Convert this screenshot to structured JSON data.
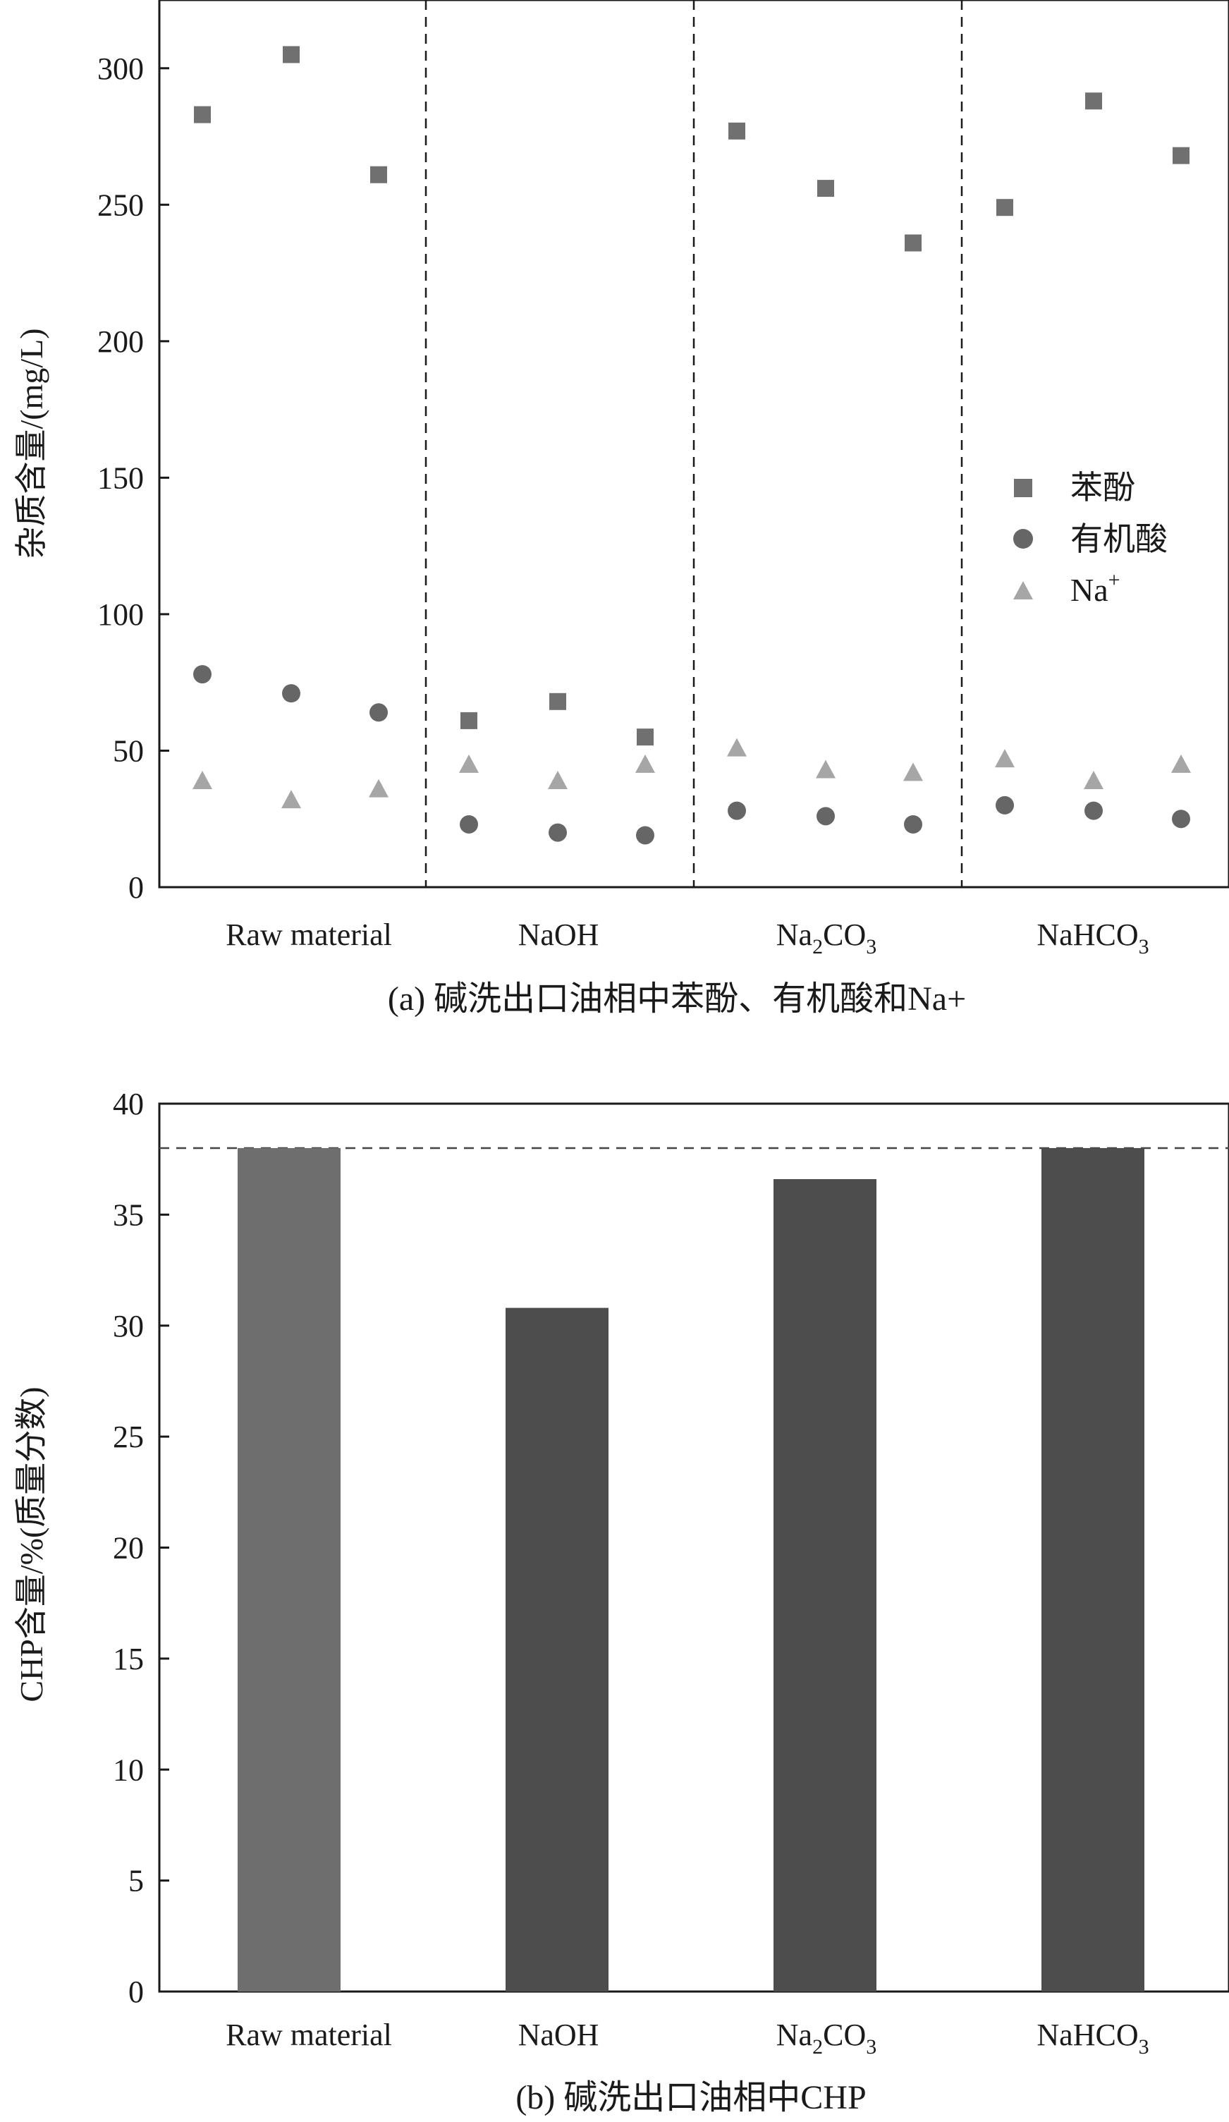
{
  "chart_data": [
    {
      "id": "a",
      "type": "scatter",
      "caption": "(a) 碱洗出口油相中苯酚、有机酸和Na+",
      "ylabel": "杂质含量/(mg/L)",
      "ylim": [
        0,
        325
      ],
      "yticks": [
        0,
        50,
        100,
        150,
        200,
        250,
        300
      ],
      "groups": [
        {
          "label": "Raw material",
          "sub": ""
        },
        {
          "label": "NaOH",
          "sub": ""
        },
        {
          "label": "Na",
          "sub": "2",
          "label_tail": "CO",
          "sub2": "3"
        },
        {
          "label": "NaHCO",
          "sub": "3"
        }
      ],
      "series": [
        {
          "name": "苯酚",
          "marker": "square",
          "color": "#707070",
          "values": [
            [
              283,
              305,
              261
            ],
            [
              61,
              68,
              55
            ],
            [
              277,
              256,
              236
            ],
            [
              249,
              288,
              268
            ]
          ]
        },
        {
          "name": "有机酸",
          "marker": "circle",
          "color": "#666666",
          "values": [
            [
              78,
              71,
              64
            ],
            [
              23,
              20,
              19
            ],
            [
              28,
              26,
              23
            ],
            [
              30,
              28,
              25
            ]
          ]
        },
        {
          "name": "Na",
          "name_sup": "+",
          "marker": "triangle",
          "color": "#a6a6a6",
          "values": [
            [
              39,
              32,
              36
            ],
            [
              45,
              39,
              45
            ],
            [
              51,
              43,
              42
            ],
            [
              47,
              39,
              45
            ]
          ]
        }
      ]
    },
    {
      "id": "b",
      "type": "bar",
      "caption": "(b) 碱洗出口油相中CHP",
      "ylabel": "CHP含量/%(质量分数)",
      "ylim": [
        0,
        40
      ],
      "yticks": [
        0,
        5,
        10,
        15,
        20,
        25,
        30,
        35,
        40
      ],
      "reference_line": 38,
      "categories": [
        "Raw material",
        "NaOH",
        "Na2CO3",
        "NaHCO3"
      ],
      "values": [
        38,
        30.8,
        36.6,
        38
      ],
      "colors": [
        "#6e6e6e",
        "#4d4d4d",
        "#4d4d4d",
        "#4d4d4d"
      ]
    }
  ]
}
